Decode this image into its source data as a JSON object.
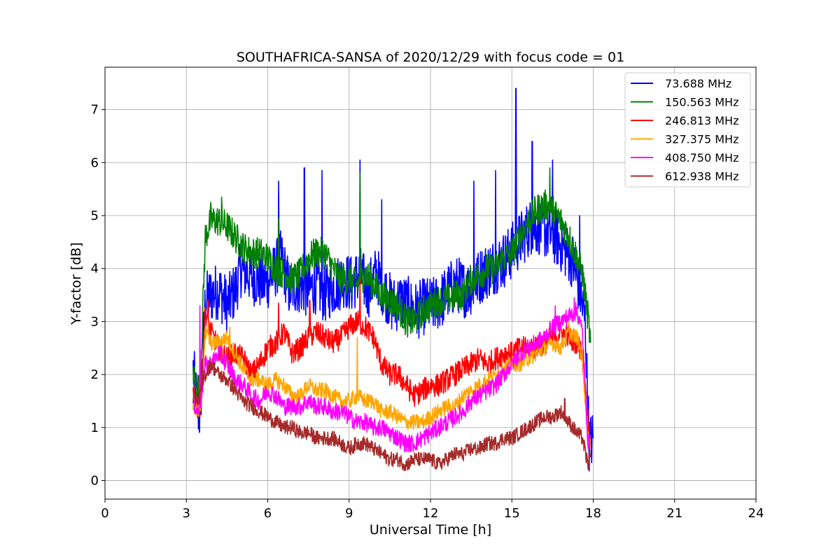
{
  "chart_data": {
    "type": "line",
    "title": "SOUTHAFRICA-SANSA of 2020/12/29 with focus code = 01",
    "xlabel": "Universal Time [h]",
    "ylabel": "Y-factor [dB]",
    "xlim": [
      0,
      24
    ],
    "ylim": [
      -0.35,
      7.8
    ],
    "xticks": [
      0,
      3,
      6,
      9,
      12,
      15,
      18,
      21,
      24
    ],
    "yticks": [
      0,
      1,
      2,
      3,
      4,
      5,
      6,
      7
    ],
    "grid": true,
    "legend_position": "top-right",
    "series": [
      {
        "name": " 73.688 MHz",
        "color": "#0000ff",
        "x": [
          3.25,
          3.4,
          3.5,
          3.7,
          3.9,
          4.2,
          4.5,
          4.8,
          5.0,
          5.3,
          5.6,
          5.9,
          6.2,
          6.5,
          6.8,
          7.1,
          7.5,
          7.8,
          8.1,
          8.5,
          8.8,
          9.1,
          9.4,
          9.7,
          10.0,
          10.3,
          10.6,
          10.9,
          11.2,
          11.5,
          11.8,
          12.1,
          12.4,
          12.7,
          13.0,
          13.3,
          13.6,
          13.9,
          14.2,
          14.5,
          14.8,
          15.1,
          15.4,
          15.7,
          16.0,
          16.3,
          16.6,
          16.9,
          17.2,
          17.5,
          17.7,
          17.85,
          18.0
        ],
        "y": [
          2.1,
          1.4,
          1.2,
          3.4,
          3.5,
          3.6,
          3.3,
          3.6,
          4.0,
          3.9,
          3.8,
          3.7,
          3.9,
          4.2,
          3.6,
          3.7,
          3.6,
          3.7,
          3.5,
          3.7,
          3.8,
          3.7,
          3.9,
          3.6,
          3.9,
          3.6,
          3.3,
          3.4,
          3.3,
          3.2,
          3.3,
          3.3,
          3.4,
          3.6,
          3.7,
          3.6,
          3.7,
          3.9,
          4.0,
          4.1,
          4.2,
          4.4,
          4.6,
          4.8,
          4.8,
          4.7,
          4.6,
          4.4,
          4.2,
          3.6,
          3.0,
          0.7,
          0.8
        ],
        "peaks": [
          [
            6.4,
            5.65
          ],
          [
            7.35,
            5.9
          ],
          [
            8.0,
            5.85
          ],
          [
            9.4,
            6.05
          ],
          [
            10.2,
            5.3
          ],
          [
            13.6,
            5.65
          ],
          [
            14.4,
            5.85
          ],
          [
            15.15,
            7.4
          ],
          [
            15.75,
            6.4
          ],
          [
            16.5,
            6.05
          ],
          [
            17.5,
            5.0
          ]
        ]
      },
      {
        "name": "150.563 MHz",
        "color": "#008000",
        "x": [
          3.25,
          3.4,
          3.5,
          3.7,
          3.9,
          4.2,
          4.5,
          4.8,
          5.1,
          5.4,
          5.7,
          6.0,
          6.3,
          6.6,
          6.9,
          7.2,
          7.5,
          7.8,
          8.1,
          8.4,
          8.7,
          9.0,
          9.3,
          9.6,
          9.9,
          10.2,
          10.5,
          10.8,
          11.1,
          11.4,
          11.7,
          12.0,
          12.3,
          12.6,
          12.9,
          13.2,
          13.5,
          13.8,
          14.1,
          14.4,
          14.7,
          15.0,
          15.3,
          15.6,
          15.9,
          16.2,
          16.5,
          16.8,
          17.1,
          17.4,
          17.6,
          17.8,
          17.9
        ],
        "y": [
          2.0,
          1.8,
          1.7,
          4.6,
          4.9,
          4.9,
          4.8,
          4.6,
          4.4,
          4.3,
          4.3,
          4.2,
          4.0,
          3.9,
          3.8,
          3.9,
          4.2,
          4.3,
          4.3,
          4.0,
          3.8,
          3.8,
          3.7,
          3.9,
          3.7,
          3.5,
          3.4,
          3.3,
          3.0,
          3.0,
          3.2,
          3.3,
          3.4,
          3.4,
          3.5,
          3.5,
          3.8,
          3.9,
          4.0,
          4.0,
          4.2,
          4.3,
          4.6,
          4.9,
          5.1,
          5.2,
          5.1,
          4.9,
          4.6,
          4.2,
          3.9,
          3.1,
          2.6
        ],
        "peaks": [
          [
            3.9,
            5.25
          ],
          [
            4.3,
            5.35
          ],
          [
            6.4,
            4.95
          ],
          [
            9.4,
            5.8
          ],
          [
            16.4,
            5.9
          ]
        ]
      },
      {
        "name": "246.813 MHz",
        "color": "#ff0000",
        "x": [
          3.25,
          3.4,
          3.5,
          3.7,
          3.9,
          4.2,
          4.5,
          4.8,
          5.1,
          5.4,
          5.7,
          6.0,
          6.3,
          6.6,
          6.9,
          7.2,
          7.5,
          7.8,
          8.1,
          8.4,
          8.7,
          9.0,
          9.3,
          9.6,
          9.9,
          10.2,
          10.5,
          10.8,
          11.1,
          11.4,
          11.7,
          12.0,
          12.3,
          12.6,
          12.9,
          13.2,
          13.5,
          13.8,
          14.1,
          14.4,
          14.7,
          15.0,
          15.3,
          15.6,
          15.9,
          16.2,
          16.5,
          16.8,
          17.1,
          17.4,
          17.6,
          17.8,
          17.9
        ],
        "y": [
          1.6,
          1.4,
          1.4,
          3.2,
          2.8,
          2.5,
          2.3,
          2.4,
          2.3,
          2.0,
          2.2,
          2.5,
          2.6,
          2.8,
          2.4,
          2.5,
          2.7,
          2.8,
          2.7,
          2.6,
          2.7,
          2.9,
          3.0,
          2.9,
          2.7,
          2.2,
          2.0,
          2.0,
          1.8,
          1.6,
          1.7,
          1.8,
          1.8,
          1.9,
          2.0,
          2.1,
          2.2,
          2.3,
          2.2,
          2.3,
          2.4,
          2.4,
          2.5,
          2.5,
          2.5,
          2.6,
          2.7,
          2.8,
          2.7,
          2.6,
          2.4,
          1.1,
          0.8
        ],
        "peaks": [
          [
            3.8,
            3.4
          ],
          [
            6.4,
            3.35
          ],
          [
            7.55,
            3.4
          ],
          [
            9.4,
            3.8
          ],
          [
            15.5,
            2.7
          ]
        ]
      },
      {
        "name": "327.375 MHz",
        "color": "#ffa500",
        "x": [
          3.25,
          3.4,
          3.5,
          3.7,
          3.9,
          4.2,
          4.5,
          4.8,
          5.1,
          5.4,
          5.7,
          6.0,
          6.3,
          6.6,
          6.9,
          7.2,
          7.5,
          7.8,
          8.1,
          8.4,
          8.7,
          9.0,
          9.3,
          9.6,
          9.9,
          10.2,
          10.5,
          10.8,
          11.1,
          11.4,
          11.7,
          12.0,
          12.3,
          12.6,
          12.9,
          13.2,
          13.5,
          13.8,
          14.1,
          14.4,
          14.7,
          15.0,
          15.3,
          15.6,
          15.9,
          16.2,
          16.5,
          16.8,
          17.1,
          17.4,
          17.6,
          17.8,
          17.9
        ],
        "y": [
          1.4,
          1.3,
          1.3,
          2.8,
          2.6,
          2.6,
          2.7,
          2.4,
          2.1,
          1.9,
          1.9,
          1.8,
          1.9,
          1.8,
          1.6,
          1.6,
          1.8,
          1.7,
          1.7,
          1.6,
          1.5,
          1.5,
          1.6,
          1.5,
          1.5,
          1.3,
          1.3,
          1.2,
          1.1,
          1.1,
          1.1,
          1.2,
          1.3,
          1.4,
          1.4,
          1.6,
          1.7,
          1.8,
          1.9,
          2.0,
          2.1,
          2.2,
          2.2,
          2.3,
          2.4,
          2.5,
          2.6,
          2.5,
          2.8,
          2.7,
          2.3,
          0.9,
          0.6
        ],
        "peaks": [
          [
            3.8,
            2.95
          ],
          [
            4.6,
            2.9
          ],
          [
            9.3,
            2.7
          ],
          [
            17.1,
            3.0
          ]
        ]
      },
      {
        "name": "408.750 MHz",
        "color": "#ff00ff",
        "x": [
          3.25,
          3.4,
          3.5,
          3.7,
          3.9,
          4.2,
          4.5,
          4.8,
          5.1,
          5.4,
          5.7,
          6.0,
          6.3,
          6.6,
          6.9,
          7.2,
          7.5,
          7.8,
          8.1,
          8.4,
          8.7,
          9.0,
          9.3,
          9.6,
          9.9,
          10.2,
          10.5,
          10.8,
          11.1,
          11.4,
          11.7,
          12.0,
          12.3,
          12.6,
          12.9,
          13.2,
          13.5,
          13.8,
          14.1,
          14.4,
          14.7,
          15.0,
          15.3,
          15.6,
          15.9,
          16.2,
          16.5,
          16.8,
          17.1,
          17.4,
          17.6,
          17.8,
          17.9
        ],
        "y": [
          1.5,
          1.3,
          1.4,
          2.2,
          2.2,
          2.4,
          2.2,
          1.9,
          1.8,
          1.6,
          1.5,
          1.7,
          1.6,
          1.4,
          1.4,
          1.4,
          1.5,
          1.4,
          1.4,
          1.3,
          1.3,
          1.2,
          1.1,
          1.1,
          1.0,
          1.0,
          0.9,
          0.8,
          0.7,
          0.7,
          0.8,
          0.9,
          1.0,
          1.1,
          1.2,
          1.3,
          1.5,
          1.6,
          1.7,
          1.8,
          2.0,
          2.2,
          2.4,
          2.5,
          2.6,
          2.7,
          2.9,
          3.0,
          3.1,
          3.2,
          2.8,
          0.8,
          0.5
        ],
        "peaks": [
          [
            3.5,
            3.3
          ],
          [
            16.6,
            3.3
          ],
          [
            17.3,
            3.45
          ]
        ]
      },
      {
        "name": "612.938 MHz",
        "color": "#a52a2a",
        "x": [
          3.25,
          3.4,
          3.5,
          3.7,
          3.9,
          4.2,
          4.5,
          4.8,
          5.1,
          5.4,
          5.7,
          6.0,
          6.3,
          6.6,
          6.9,
          7.2,
          7.5,
          7.8,
          8.1,
          8.4,
          8.7,
          9.0,
          9.3,
          9.6,
          9.9,
          10.2,
          10.5,
          10.8,
          11.1,
          11.4,
          11.7,
          12.0,
          12.3,
          12.6,
          12.9,
          13.2,
          13.5,
          13.8,
          14.1,
          14.4,
          14.7,
          15.0,
          15.3,
          15.6,
          15.9,
          16.2,
          16.5,
          16.8,
          17.1,
          17.4,
          17.6,
          17.8,
          17.9
        ],
        "y": [
          1.6,
          1.5,
          1.6,
          2.0,
          2.2,
          2.0,
          1.9,
          1.7,
          1.5,
          1.4,
          1.3,
          1.2,
          1.1,
          1.0,
          1.0,
          0.9,
          0.9,
          0.8,
          0.8,
          0.8,
          0.7,
          0.6,
          0.7,
          0.7,
          0.6,
          0.5,
          0.4,
          0.4,
          0.3,
          0.4,
          0.4,
          0.4,
          0.3,
          0.4,
          0.5,
          0.5,
          0.6,
          0.6,
          0.7,
          0.7,
          0.8,
          0.8,
          0.9,
          1.0,
          1.1,
          1.2,
          1.2,
          1.3,
          1.1,
          0.9,
          0.8,
          0.3,
          0.5
        ],
        "peaks": [
          [
            3.6,
            2.3
          ],
          [
            16.95,
            1.55
          ]
        ]
      }
    ]
  }
}
